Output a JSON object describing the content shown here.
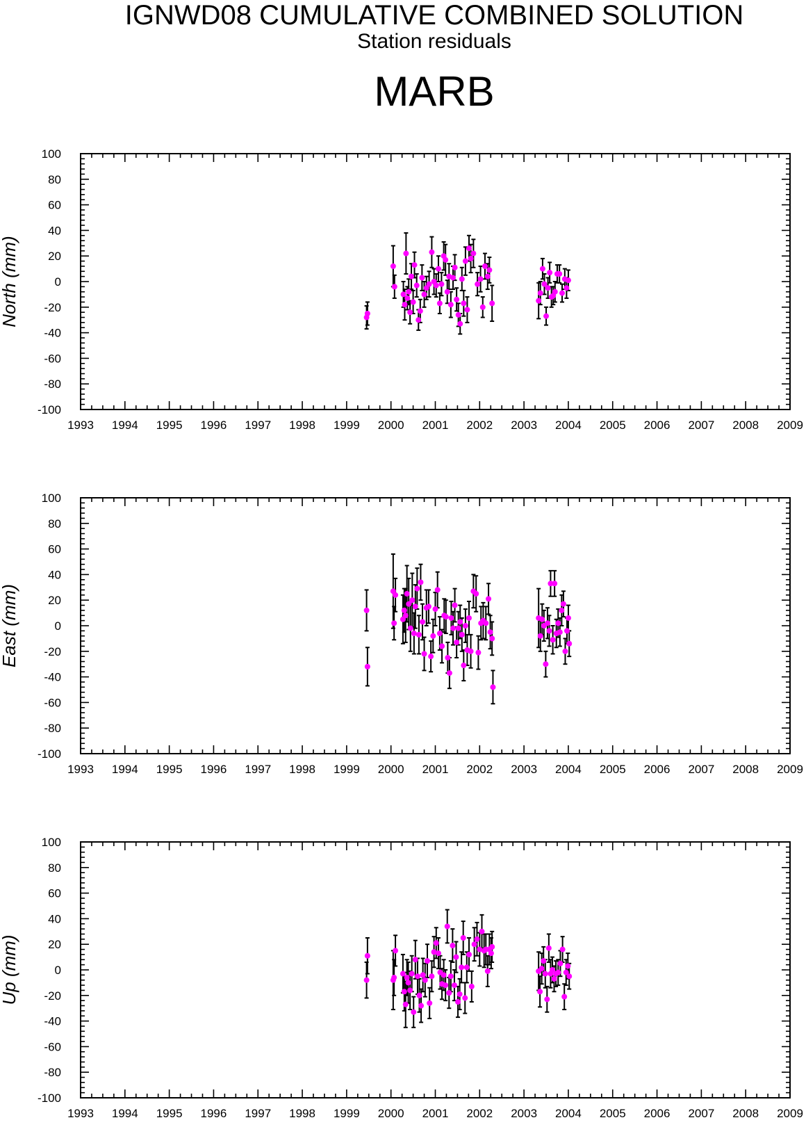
{
  "figure": {
    "title": "IGNWD08 CUMULATIVE COMBINED SOLUTION",
    "subtitle": "Station residuals",
    "station": "MARB"
  },
  "colors": {
    "point": "#ff00ff",
    "errorbar": "#000000",
    "axis": "#000000"
  },
  "chart_data": [
    {
      "type": "scatter",
      "ylabel": "North (mm)",
      "xlim": [
        1993,
        2009
      ],
      "ylim": [
        -100,
        100
      ],
      "xticks": [
        "1993",
        "1994",
        "1995",
        "1996",
        "1997",
        "1998",
        "1999",
        "2000",
        "2001",
        "2002",
        "2003",
        "2004",
        "2005",
        "2006",
        "2007",
        "2008",
        "2009"
      ],
      "yticks": [
        "100",
        "80",
        "60",
        "40",
        "20",
        "0",
        "-20",
        "-40",
        "-60",
        "-80",
        "-100"
      ],
      "grid": false,
      "points": [
        {
          "x": 1999.45,
          "y": -28,
          "err": 9
        },
        {
          "x": 1999.47,
          "y": -25,
          "err": 9
        },
        {
          "x": 2000.05,
          "y": 12,
          "err": 16
        },
        {
          "x": 2000.08,
          "y": -4,
          "err": 9
        },
        {
          "x": 2000.28,
          "y": -10,
          "err": 10
        },
        {
          "x": 2000.31,
          "y": -18,
          "err": 12
        },
        {
          "x": 2000.34,
          "y": 22,
          "err": 16
        },
        {
          "x": 2000.37,
          "y": -13,
          "err": 9
        },
        {
          "x": 2000.4,
          "y": -8,
          "err": 10
        },
        {
          "x": 2000.43,
          "y": -24,
          "err": 9
        },
        {
          "x": 2000.46,
          "y": 4,
          "err": 10
        },
        {
          "x": 2000.5,
          "y": -16,
          "err": 9
        },
        {
          "x": 2000.53,
          "y": 13,
          "err": 10
        },
        {
          "x": 2000.58,
          "y": -3,
          "err": 9
        },
        {
          "x": 2000.62,
          "y": -30,
          "err": 8
        },
        {
          "x": 2000.66,
          "y": -23,
          "err": 9
        },
        {
          "x": 2000.7,
          "y": 3,
          "err": 10
        },
        {
          "x": 2000.75,
          "y": -10,
          "err": 10
        },
        {
          "x": 2000.8,
          "y": -5,
          "err": 9
        },
        {
          "x": 2000.86,
          "y": -2,
          "err": 10
        },
        {
          "x": 2000.92,
          "y": 23,
          "err": 12
        },
        {
          "x": 2000.97,
          "y": 0,
          "err": 10
        },
        {
          "x": 2001.02,
          "y": -3,
          "err": 9
        },
        {
          "x": 2001.07,
          "y": 10,
          "err": 10
        },
        {
          "x": 2001.1,
          "y": -17,
          "err": 8
        },
        {
          "x": 2001.14,
          "y": -2,
          "err": 9
        },
        {
          "x": 2001.19,
          "y": 20,
          "err": 11
        },
        {
          "x": 2001.23,
          "y": 17,
          "err": 12
        },
        {
          "x": 2001.27,
          "y": -8,
          "err": 9
        },
        {
          "x": 2001.31,
          "y": 4,
          "err": 10
        },
        {
          "x": 2001.35,
          "y": -18,
          "err": 10
        },
        {
          "x": 2001.4,
          "y": 3,
          "err": 9
        },
        {
          "x": 2001.44,
          "y": 11,
          "err": 10
        },
        {
          "x": 2001.48,
          "y": -14,
          "err": 9
        },
        {
          "x": 2001.52,
          "y": -26,
          "err": 9
        },
        {
          "x": 2001.56,
          "y": -33,
          "err": 8
        },
        {
          "x": 2001.6,
          "y": 2,
          "err": 9
        },
        {
          "x": 2001.64,
          "y": -17,
          "err": 10
        },
        {
          "x": 2001.68,
          "y": 16,
          "err": 11
        },
        {
          "x": 2001.72,
          "y": -22,
          "err": 10
        },
        {
          "x": 2001.76,
          "y": 26,
          "err": 10
        },
        {
          "x": 2001.8,
          "y": 18,
          "err": 11
        },
        {
          "x": 2001.86,
          "y": 22,
          "err": 11
        },
        {
          "x": 2001.95,
          "y": -2,
          "err": 9
        },
        {
          "x": 2002.02,
          "y": 2,
          "err": 10
        },
        {
          "x": 2002.07,
          "y": -20,
          "err": 8
        },
        {
          "x": 2002.12,
          "y": 12,
          "err": 10
        },
        {
          "x": 2002.18,
          "y": 4,
          "err": 10
        },
        {
          "x": 2002.22,
          "y": 9,
          "err": 10
        },
        {
          "x": 2002.28,
          "y": -17,
          "err": 14
        },
        {
          "x": 2003.33,
          "y": -15,
          "err": 14
        },
        {
          "x": 2003.37,
          "y": -9,
          "err": 9
        },
        {
          "x": 2003.42,
          "y": 10,
          "err": 8
        },
        {
          "x": 2003.46,
          "y": -2,
          "err": 8
        },
        {
          "x": 2003.5,
          "y": -27,
          "err": 7
        },
        {
          "x": 2003.54,
          "y": -5,
          "err": 8
        },
        {
          "x": 2003.58,
          "y": 7,
          "err": 8
        },
        {
          "x": 2003.62,
          "y": -12,
          "err": 8
        },
        {
          "x": 2003.66,
          "y": -11,
          "err": 7
        },
        {
          "x": 2003.7,
          "y": -8,
          "err": 8
        },
        {
          "x": 2003.75,
          "y": 6,
          "err": 7
        },
        {
          "x": 2003.8,
          "y": 6,
          "err": 7
        },
        {
          "x": 2003.86,
          "y": -9,
          "err": 7
        },
        {
          "x": 2003.92,
          "y": 2,
          "err": 8
        },
        {
          "x": 2003.96,
          "y": -5,
          "err": 8
        },
        {
          "x": 2004.0,
          "y": 1,
          "err": 8
        }
      ]
    },
    {
      "type": "scatter",
      "ylabel": "East (mm)",
      "xlim": [
        1993,
        2009
      ],
      "ylim": [
        -100,
        100
      ],
      "xticks": [
        "1993",
        "1994",
        "1995",
        "1996",
        "1997",
        "1998",
        "1999",
        "2000",
        "2001",
        "2002",
        "2003",
        "2004",
        "2005",
        "2006",
        "2007",
        "2008",
        "2009"
      ],
      "yticks": [
        "100",
        "80",
        "60",
        "40",
        "20",
        "0",
        "-20",
        "-40",
        "-60",
        "-80",
        "-100"
      ],
      "grid": false,
      "points": [
        {
          "x": 1999.45,
          "y": 12,
          "err": 16
        },
        {
          "x": 1999.47,
          "y": -32,
          "err": 15
        },
        {
          "x": 2000.05,
          "y": 27,
          "err": 29
        },
        {
          "x": 2000.07,
          "y": 2,
          "err": 13
        },
        {
          "x": 2000.1,
          "y": 24,
          "err": 13
        },
        {
          "x": 2000.27,
          "y": 5,
          "err": 19
        },
        {
          "x": 2000.3,
          "y": 12,
          "err": 17
        },
        {
          "x": 2000.33,
          "y": 8,
          "err": 21
        },
        {
          "x": 2000.36,
          "y": 25,
          "err": 22
        },
        {
          "x": 2000.4,
          "y": 17,
          "err": 20
        },
        {
          "x": 2000.44,
          "y": -2,
          "err": 18
        },
        {
          "x": 2000.48,
          "y": 20,
          "err": 21
        },
        {
          "x": 2000.52,
          "y": -6,
          "err": 16
        },
        {
          "x": 2000.55,
          "y": 15,
          "err": 17
        },
        {
          "x": 2000.59,
          "y": 29,
          "err": 16
        },
        {
          "x": 2000.63,
          "y": -7,
          "err": 15
        },
        {
          "x": 2000.67,
          "y": 34,
          "err": 14
        },
        {
          "x": 2000.71,
          "y": 3,
          "err": 14
        },
        {
          "x": 2000.75,
          "y": -22,
          "err": 13
        },
        {
          "x": 2000.8,
          "y": 14,
          "err": 14
        },
        {
          "x": 2000.85,
          "y": 15,
          "err": 13
        },
        {
          "x": 2000.9,
          "y": -24,
          "err": 12
        },
        {
          "x": 2000.95,
          "y": -8,
          "err": 13
        },
        {
          "x": 2001.0,
          "y": 13,
          "err": 13
        },
        {
          "x": 2001.05,
          "y": 28,
          "err": 14
        },
        {
          "x": 2001.1,
          "y": -6,
          "err": 13
        },
        {
          "x": 2001.15,
          "y": -16,
          "err": 13
        },
        {
          "x": 2001.2,
          "y": 8,
          "err": 13
        },
        {
          "x": 2001.24,
          "y": 7,
          "err": 13
        },
        {
          "x": 2001.28,
          "y": -25,
          "err": 12
        },
        {
          "x": 2001.32,
          "y": -37,
          "err": 12
        },
        {
          "x": 2001.36,
          "y": 6,
          "err": 13
        },
        {
          "x": 2001.4,
          "y": -2,
          "err": 13
        },
        {
          "x": 2001.44,
          "y": 16,
          "err": 13
        },
        {
          "x": 2001.48,
          "y": -13,
          "err": 12
        },
        {
          "x": 2001.52,
          "y": -2,
          "err": 13
        },
        {
          "x": 2001.56,
          "y": 3,
          "err": 13
        },
        {
          "x": 2001.6,
          "y": -7,
          "err": 13
        },
        {
          "x": 2001.64,
          "y": -31,
          "err": 12
        },
        {
          "x": 2001.68,
          "y": 0,
          "err": 13
        },
        {
          "x": 2001.72,
          "y": -19,
          "err": 12
        },
        {
          "x": 2001.76,
          "y": 6,
          "err": 13
        },
        {
          "x": 2001.8,
          "y": -20,
          "err": 13
        },
        {
          "x": 2001.86,
          "y": 27,
          "err": 13
        },
        {
          "x": 2001.92,
          "y": 25,
          "err": 14
        },
        {
          "x": 2001.97,
          "y": -21,
          "err": 13
        },
        {
          "x": 2002.03,
          "y": 2,
          "err": 13
        },
        {
          "x": 2002.08,
          "y": 4,
          "err": 14
        },
        {
          "x": 2002.14,
          "y": 2,
          "err": 13
        },
        {
          "x": 2002.2,
          "y": 21,
          "err": 12
        },
        {
          "x": 2002.24,
          "y": -5,
          "err": 13
        },
        {
          "x": 2002.28,
          "y": -10,
          "err": 13
        },
        {
          "x": 2002.3,
          "y": -48,
          "err": 13
        },
        {
          "x": 2003.33,
          "y": 6,
          "err": 23
        },
        {
          "x": 2003.37,
          "y": -8,
          "err": 12
        },
        {
          "x": 2003.41,
          "y": 5,
          "err": 12
        },
        {
          "x": 2003.45,
          "y": 0,
          "err": 12
        },
        {
          "x": 2003.49,
          "y": -30,
          "err": 10
        },
        {
          "x": 2003.53,
          "y": 2,
          "err": 12
        },
        {
          "x": 2003.57,
          "y": -4,
          "err": 12
        },
        {
          "x": 2003.6,
          "y": 33,
          "err": 10
        },
        {
          "x": 2003.65,
          "y": -11,
          "err": 11
        },
        {
          "x": 2003.69,
          "y": 33,
          "err": 10
        },
        {
          "x": 2003.73,
          "y": -6,
          "err": 11
        },
        {
          "x": 2003.77,
          "y": 2,
          "err": 11
        },
        {
          "x": 2003.81,
          "y": -5,
          "err": 11
        },
        {
          "x": 2003.85,
          "y": 12,
          "err": 12
        },
        {
          "x": 2003.89,
          "y": 17,
          "err": 10
        },
        {
          "x": 2003.93,
          "y": -20,
          "err": 10
        },
        {
          "x": 2003.97,
          "y": -4,
          "err": 10
        },
        {
          "x": 2004.0,
          "y": 6,
          "err": 10
        },
        {
          "x": 2004.02,
          "y": -14,
          "err": 10
        }
      ]
    },
    {
      "type": "scatter",
      "ylabel": "Up (mm)",
      "xlim": [
        1993,
        2009
      ],
      "ylim": [
        -100,
        100
      ],
      "xticks": [
        "1993",
        "1994",
        "1995",
        "1996",
        "1997",
        "1998",
        "1999",
        "2000",
        "2001",
        "2002",
        "2003",
        "2004",
        "2005",
        "2006",
        "2007",
        "2008",
        "2009"
      ],
      "yticks": [
        "100",
        "80",
        "60",
        "40",
        "20",
        "0",
        "-20",
        "-40",
        "-60",
        "-80",
        "-100"
      ],
      "grid": false,
      "points": [
        {
          "x": 1999.45,
          "y": -8,
          "err": 14
        },
        {
          "x": 1999.47,
          "y": 11,
          "err": 14
        },
        {
          "x": 2000.05,
          "y": -8,
          "err": 23
        },
        {
          "x": 2000.07,
          "y": -6,
          "err": 14
        },
        {
          "x": 2000.1,
          "y": 15,
          "err": 12
        },
        {
          "x": 2000.27,
          "y": -3,
          "err": 15
        },
        {
          "x": 2000.3,
          "y": -17,
          "err": 15
        },
        {
          "x": 2000.33,
          "y": -27,
          "err": 18
        },
        {
          "x": 2000.36,
          "y": -6,
          "err": 14
        },
        {
          "x": 2000.39,
          "y": -10,
          "err": 16
        },
        {
          "x": 2000.43,
          "y": -16,
          "err": 15
        },
        {
          "x": 2000.47,
          "y": -3,
          "err": 14
        },
        {
          "x": 2000.51,
          "y": -33,
          "err": 12
        },
        {
          "x": 2000.55,
          "y": 8,
          "err": 15
        },
        {
          "x": 2000.6,
          "y": -5,
          "err": 14
        },
        {
          "x": 2000.64,
          "y": -20,
          "err": 13
        },
        {
          "x": 2000.68,
          "y": -28,
          "err": 13
        },
        {
          "x": 2000.72,
          "y": -4,
          "err": 13
        },
        {
          "x": 2000.77,
          "y": -8,
          "err": 13
        },
        {
          "x": 2000.82,
          "y": 7,
          "err": 13
        },
        {
          "x": 2000.87,
          "y": -26,
          "err": 12
        },
        {
          "x": 2000.92,
          "y": -5,
          "err": 12
        },
        {
          "x": 2000.97,
          "y": 14,
          "err": 12
        },
        {
          "x": 2001.02,
          "y": 21,
          "err": 12
        },
        {
          "x": 2001.07,
          "y": 13,
          "err": 12
        },
        {
          "x": 2001.11,
          "y": -2,
          "err": 13
        },
        {
          "x": 2001.15,
          "y": -11,
          "err": 12
        },
        {
          "x": 2001.19,
          "y": -4,
          "err": 12
        },
        {
          "x": 2001.23,
          "y": -12,
          "err": 12
        },
        {
          "x": 2001.27,
          "y": 34,
          "err": 13
        },
        {
          "x": 2001.31,
          "y": -18,
          "err": 12
        },
        {
          "x": 2001.35,
          "y": -5,
          "err": 12
        },
        {
          "x": 2001.39,
          "y": 19,
          "err": 13
        },
        {
          "x": 2001.43,
          "y": -12,
          "err": 12
        },
        {
          "x": 2001.47,
          "y": 10,
          "err": 12
        },
        {
          "x": 2001.51,
          "y": -25,
          "err": 12
        },
        {
          "x": 2001.55,
          "y": -19,
          "err": 12
        },
        {
          "x": 2001.59,
          "y": 2,
          "err": 12
        },
        {
          "x": 2001.63,
          "y": 25,
          "err": 13
        },
        {
          "x": 2001.67,
          "y": -22,
          "err": 12
        },
        {
          "x": 2001.71,
          "y": 2,
          "err": 12
        },
        {
          "x": 2001.76,
          "y": 12,
          "err": 13
        },
        {
          "x": 2001.82,
          "y": -13,
          "err": 12
        },
        {
          "x": 2001.88,
          "y": 20,
          "err": 13
        },
        {
          "x": 2001.94,
          "y": 24,
          "err": 13
        },
        {
          "x": 2002.0,
          "y": 16,
          "err": 13
        },
        {
          "x": 2002.05,
          "y": 30,
          "err": 13
        },
        {
          "x": 2002.1,
          "y": 15,
          "err": 13
        },
        {
          "x": 2002.14,
          "y": 16,
          "err": 12
        },
        {
          "x": 2002.18,
          "y": -1,
          "err": 12
        },
        {
          "x": 2002.22,
          "y": 16,
          "err": 12
        },
        {
          "x": 2002.26,
          "y": 13,
          "err": 12
        },
        {
          "x": 2002.28,
          "y": 18,
          "err": 12
        },
        {
          "x": 2003.33,
          "y": -1,
          "err": 15
        },
        {
          "x": 2003.36,
          "y": -17,
          "err": 12
        },
        {
          "x": 2003.4,
          "y": 1,
          "err": 12
        },
        {
          "x": 2003.44,
          "y": 7,
          "err": 11
        },
        {
          "x": 2003.48,
          "y": -3,
          "err": 11
        },
        {
          "x": 2003.52,
          "y": -23,
          "err": 10
        },
        {
          "x": 2003.56,
          "y": 17,
          "err": 11
        },
        {
          "x": 2003.6,
          "y": -3,
          "err": 11
        },
        {
          "x": 2003.64,
          "y": 0,
          "err": 10
        },
        {
          "x": 2003.68,
          "y": -7,
          "err": 10
        },
        {
          "x": 2003.72,
          "y": -3,
          "err": 10
        },
        {
          "x": 2003.77,
          "y": -2,
          "err": 10
        },
        {
          "x": 2003.82,
          "y": 5,
          "err": 10
        },
        {
          "x": 2003.87,
          "y": 16,
          "err": 10
        },
        {
          "x": 2003.91,
          "y": -21,
          "err": 10
        },
        {
          "x": 2003.95,
          "y": -2,
          "err": 10
        },
        {
          "x": 2003.99,
          "y": 3,
          "err": 10
        },
        {
          "x": 2004.02,
          "y": -5,
          "err": 10
        }
      ]
    }
  ]
}
